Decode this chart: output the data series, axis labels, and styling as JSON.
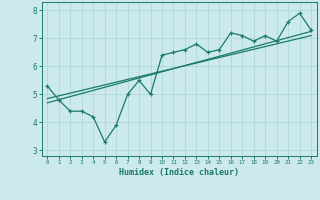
{
  "xlabel": "Humidex (Indice chaleur)",
  "ylabel": "",
  "background_color": "#cce9eb",
  "grid_color": "#afd8db",
  "line_color": "#1a7a6e",
  "x_data": [
    0,
    1,
    2,
    3,
    4,
    5,
    6,
    7,
    8,
    9,
    10,
    11,
    12,
    13,
    14,
    15,
    16,
    17,
    18,
    19,
    20,
    21,
    22,
    23
  ],
  "y_data": [
    5.3,
    4.8,
    4.4,
    4.4,
    4.2,
    3.3,
    3.9,
    5.0,
    5.5,
    5.0,
    6.4,
    6.5,
    6.6,
    6.8,
    6.5,
    6.6,
    7.2,
    7.1,
    6.9,
    7.1,
    6.9,
    7.6,
    7.9,
    7.3
  ],
  "xlim": [
    -0.5,
    23.5
  ],
  "ylim": [
    2.8,
    8.3
  ],
  "yticks": [
    3,
    4,
    5,
    6,
    7,
    8
  ],
  "xticks": [
    0,
    1,
    2,
    3,
    4,
    5,
    6,
    7,
    8,
    9,
    10,
    11,
    12,
    13,
    14,
    15,
    16,
    17,
    18,
    19,
    20,
    21,
    22,
    23
  ],
  "trend1_x": [
    0,
    23
  ],
  "trend1_y": [
    4.7,
    7.25
  ],
  "trend2_x": [
    0,
    23
  ],
  "trend2_y": [
    4.85,
    7.1
  ]
}
